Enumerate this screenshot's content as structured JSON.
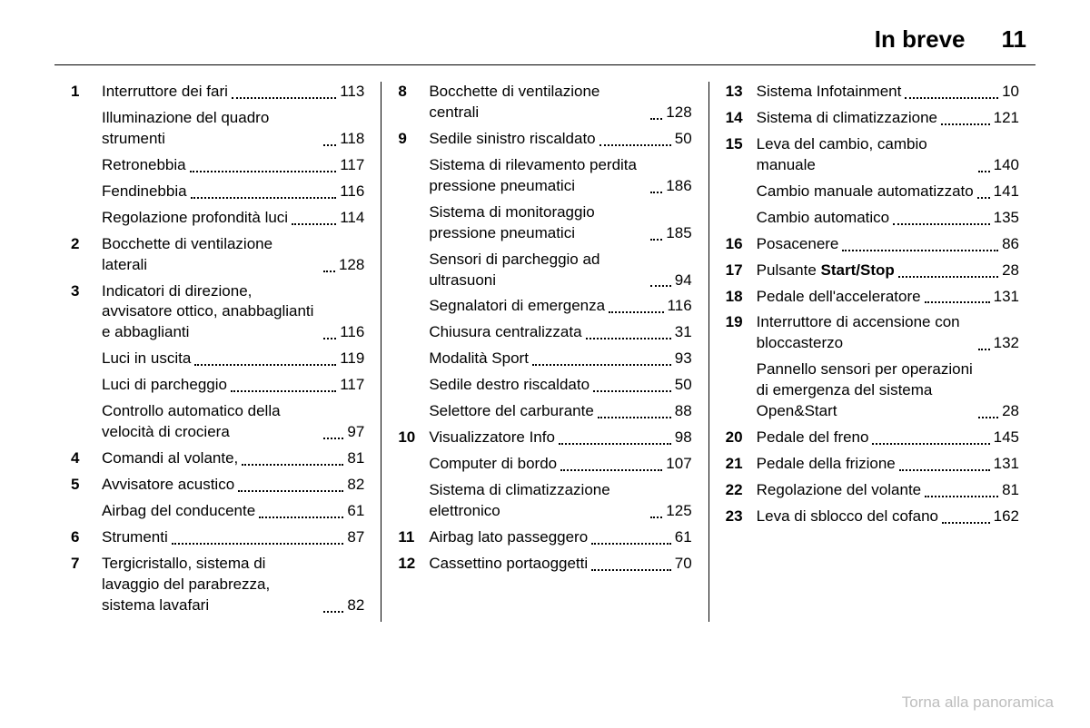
{
  "header": {
    "title": "In breve",
    "page": "11"
  },
  "footer": {
    "link_text": "Torna alla panoramica"
  },
  "columns": [
    [
      {
        "num": "1",
        "text": "Interruttore dei fari",
        "page": "113"
      },
      {
        "num": "",
        "text": "Illuminazione del quadro strumenti",
        "page": "118"
      },
      {
        "num": "",
        "text": "Retronebbia",
        "page": "117"
      },
      {
        "num": "",
        "text": "Fendinebbia",
        "page": "116"
      },
      {
        "num": "",
        "text": "Regolazione profondità luci",
        "page": "114"
      },
      {
        "num": "2",
        "text": "Bocchette di ventilazione laterali",
        "page": "128"
      },
      {
        "num": "3",
        "text": "Indicatori di direzione, avvisatore ottico, anabbaglianti e abbaglianti",
        "page": "116"
      },
      {
        "num": "",
        "text": "Luci in uscita",
        "page": "119"
      },
      {
        "num": "",
        "text": "Luci di parcheggio",
        "page": "117"
      },
      {
        "num": "",
        "text": "Controllo automatico della velocità di crociera",
        "page": "97"
      },
      {
        "num": "4",
        "text": "Comandi al volante,",
        "page": "81"
      },
      {
        "num": "5",
        "text": "Avvisatore acustico",
        "page": "82"
      },
      {
        "num": "",
        "text": "Airbag del conducente",
        "page": "61"
      },
      {
        "num": "6",
        "text": "Strumenti",
        "page": "87"
      },
      {
        "num": "7",
        "text": "Tergicristallo, sistema di lavaggio del parabrezza, sistema lavafari",
        "page": "82"
      }
    ],
    [
      {
        "num": "8",
        "text": "Bocchette di ventilazione centrali",
        "page": "128"
      },
      {
        "num": "9",
        "text": "Sedile sinistro riscaldato",
        "page": "50"
      },
      {
        "num": "",
        "text": "Sistema di rilevamento perdita pressione pneumatici",
        "page": "186"
      },
      {
        "num": "",
        "text": "Sistema di monitoraggio pressione pneumatici",
        "page": "185"
      },
      {
        "num": "",
        "text": "Sensori di parcheggio ad ultrasuoni",
        "page": "94"
      },
      {
        "num": "",
        "text": "Segnalatori di emergenza",
        "page": "116"
      },
      {
        "num": "",
        "text": "Chiusura centralizzata",
        "page": "31"
      },
      {
        "num": "",
        "text": "Modalità Sport",
        "page": "93"
      },
      {
        "num": "",
        "text": "Sedile destro riscaldato",
        "page": "50"
      },
      {
        "num": "",
        "text": "Selettore del carburante",
        "page": "88"
      },
      {
        "num": "10",
        "text": "Visualizzatore Info",
        "page": "98"
      },
      {
        "num": "",
        "text": "Computer di bordo",
        "page": "107"
      },
      {
        "num": "",
        "text": "Sistema di climatizzazione elettronico",
        "page": "125"
      },
      {
        "num": "11",
        "text": "Airbag lato passeggero",
        "page": "61"
      },
      {
        "num": "12",
        "text": "Cassettino portaoggetti",
        "page": "70"
      }
    ],
    [
      {
        "num": "13",
        "text": "Sistema Infotainment",
        "page": "10"
      },
      {
        "num": "14",
        "text": "Sistema di climatizzazione",
        "page": "121"
      },
      {
        "num": "15",
        "text": "Leva del cambio, cambio manuale",
        "page": "140"
      },
      {
        "num": "",
        "text": "Cambio manuale automatizzato",
        "page": "141"
      },
      {
        "num": "",
        "text": "Cambio automatico",
        "page": "135"
      },
      {
        "num": "16",
        "text": "Posacenere",
        "page": "86"
      },
      {
        "num": "17",
        "text": "Pulsante ",
        "bold_suffix": "Start/Stop",
        "page": "28"
      },
      {
        "num": "18",
        "text": "Pedale dell'acceleratore",
        "page": "131"
      },
      {
        "num": "19",
        "text": "Interruttore di accensione con bloccasterzo",
        "page": "132"
      },
      {
        "num": "",
        "text": "Pannello sensori per operazioni di emergenza del sistema Open&Start",
        "page": "28"
      },
      {
        "num": "20",
        "text": "Pedale del freno",
        "page": "145"
      },
      {
        "num": "21",
        "text": "Pedale della frizione",
        "page": "131"
      },
      {
        "num": "22",
        "text": "Regolazione del volante",
        "page": "81"
      },
      {
        "num": "23",
        "text": "Leva di sblocco del cofano",
        "page": "162"
      }
    ]
  ]
}
